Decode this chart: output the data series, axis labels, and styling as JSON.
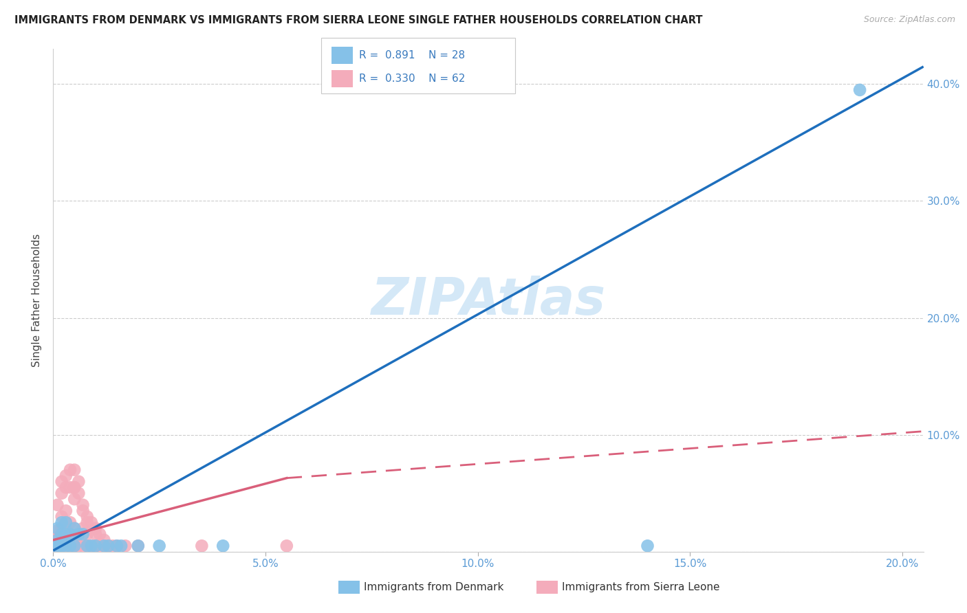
{
  "title": "IMMIGRANTS FROM DENMARK VS IMMIGRANTS FROM SIERRA LEONE SINGLE FATHER HOUSEHOLDS CORRELATION CHART",
  "source": "Source: ZipAtlas.com",
  "ylabel": "Single Father Households",
  "xlabel_denmark": "Immigrants from Denmark",
  "xlabel_sierraleone": "Immigrants from Sierra Leone",
  "watermark": "ZIPAtlas",
  "legend_denmark_R": "0.891",
  "legend_denmark_N": "28",
  "legend_sierraleone_R": "0.330",
  "legend_sierraleone_N": "62",
  "denmark_color": "#85C1E8",
  "sierraleone_color": "#F4ACBB",
  "denmark_line_color": "#1E6FBD",
  "sierraleone_line_color": "#D95F7A",
  "xlim": [
    0.0,
    0.205
  ],
  "ylim": [
    0.0,
    0.43
  ],
  "xtick_positions": [
    0.0,
    0.05,
    0.1,
    0.15,
    0.2
  ],
  "xtick_labels": [
    "0.0%",
    "5.0%",
    "10.0%",
    "15.0%",
    "20.0%"
  ],
  "ytick_positions": [
    0.0,
    0.1,
    0.2,
    0.3,
    0.4
  ],
  "ytick_labels_right": [
    "",
    "10.0%",
    "20.0%",
    "30.0%",
    "40.0%"
  ],
  "denmark_x": [
    0.0005,
    0.001,
    0.001,
    0.0015,
    0.002,
    0.002,
    0.002,
    0.003,
    0.003,
    0.003,
    0.004,
    0.004,
    0.005,
    0.005,
    0.006,
    0.007,
    0.008,
    0.009,
    0.01,
    0.012,
    0.013,
    0.015,
    0.016,
    0.02,
    0.025,
    0.04,
    0.14,
    0.19
  ],
  "denmark_y": [
    0.005,
    0.01,
    0.02,
    0.005,
    0.005,
    0.015,
    0.025,
    0.005,
    0.015,
    0.025,
    0.005,
    0.015,
    0.005,
    0.02,
    0.015,
    0.015,
    0.005,
    0.005,
    0.005,
    0.005,
    0.005,
    0.005,
    0.005,
    0.005,
    0.005,
    0.005,
    0.005,
    0.395
  ],
  "sierraleone_x": [
    0.0005,
    0.0005,
    0.001,
    0.001,
    0.001,
    0.001,
    0.0015,
    0.0015,
    0.002,
    0.002,
    0.002,
    0.002,
    0.003,
    0.003,
    0.003,
    0.004,
    0.004,
    0.005,
    0.005,
    0.005,
    0.006,
    0.006,
    0.007,
    0.007,
    0.008,
    0.008,
    0.009,
    0.01,
    0.01,
    0.011,
    0.012,
    0.013,
    0.014,
    0.015,
    0.017,
    0.02,
    0.001,
    0.002,
    0.002,
    0.003,
    0.003,
    0.004,
    0.004,
    0.005,
    0.005,
    0.005,
    0.006,
    0.007,
    0.008,
    0.009,
    0.01,
    0.011,
    0.012,
    0.013,
    0.003,
    0.004,
    0.005,
    0.006,
    0.007,
    0.008,
    0.035,
    0.055
  ],
  "sierraleone_y": [
    0.005,
    0.01,
    0.005,
    0.008,
    0.012,
    0.018,
    0.005,
    0.015,
    0.005,
    0.01,
    0.02,
    0.03,
    0.005,
    0.01,
    0.025,
    0.005,
    0.015,
    0.005,
    0.01,
    0.02,
    0.005,
    0.015,
    0.005,
    0.02,
    0.005,
    0.015,
    0.005,
    0.005,
    0.015,
    0.005,
    0.005,
    0.005,
    0.005,
    0.005,
    0.005,
    0.005,
    0.04,
    0.05,
    0.06,
    0.055,
    0.065,
    0.07,
    0.055,
    0.045,
    0.055,
    0.07,
    0.06,
    0.04,
    0.03,
    0.025,
    0.02,
    0.015,
    0.01,
    0.005,
    0.035,
    0.025,
    0.055,
    0.05,
    0.035,
    0.025,
    0.005,
    0.005
  ],
  "dk_trend": [
    0.0,
    0.001,
    0.205,
    0.415
  ],
  "sl_solid": [
    0.0,
    0.01,
    0.055,
    0.063
  ],
  "sl_dash": [
    0.055,
    0.063,
    0.205,
    0.103
  ]
}
